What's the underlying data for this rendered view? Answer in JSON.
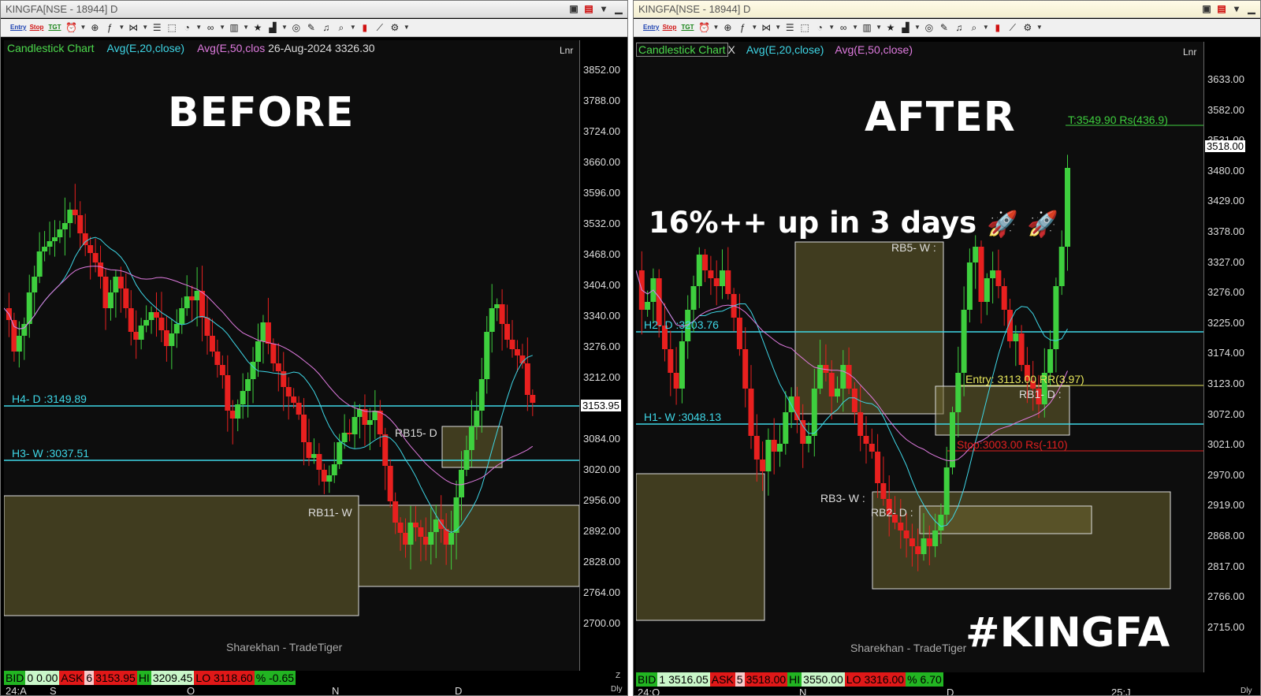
{
  "left": {
    "title": "KINGFA[NSE - 18944] D",
    "legend": {
      "type": "Candlestick Chart",
      "ema20": "Avg(E,20,close)",
      "ema50": "Avg(E,50,clos",
      "date": "26-Aug-2024",
      "price": "3326.30"
    },
    "scale_mode": "Lnr",
    "banner": "BEFORE",
    "price_axis": [
      "3852.00",
      "3788.00",
      "3724.00",
      "3660.00",
      "3596.00",
      "3532.00",
      "3468.00",
      "3404.00",
      "3340.00",
      "3276.00",
      "3212.00",
      "3148.00",
      "3084.00",
      "3020.00",
      "2956.00",
      "2892.00",
      "2828.00",
      "2764.00",
      "2700.00"
    ],
    "current_price": "3153.95",
    "levels": [
      {
        "label": "H4- D :3149.89",
        "color": "#3ed6e6"
      },
      {
        "label": "H3- W :3037.51",
        "color": "#3ed6e6"
      }
    ],
    "zones": [
      "RB15- D",
      "RB11- W"
    ],
    "status": {
      "bid_label": "BID",
      "bid_qty": "0",
      "bid": "0.00",
      "ask_label": "ASK",
      "ask_qty": "6",
      "ask": "3153.95",
      "hi_label": "HI",
      "hi": "3209.45",
      "lo_label": "LO",
      "lo": "3118.60",
      "pct_label": "%",
      "pct": "-0.65"
    },
    "time_labels": [
      "24:A",
      "S",
      "O",
      "N",
      "D"
    ],
    "watermark": "Sharekhan - TradeTiger",
    "corner_z": "Z",
    "corner_dly": "Dly"
  },
  "right": {
    "title": "KINGFA[NSE - 18944] D",
    "legend": {
      "type": "Candlestick Chart",
      "close_x": "X",
      "ema20": "Avg(E,20,close)",
      "ema50": "Avg(E,50,close)"
    },
    "scale_mode": "Lnr",
    "banner": "AFTER",
    "headline": "16%++ up in 3 days",
    "hashtag": "#KINGFA",
    "price_axis": [
      "3633.00",
      "3582.00",
      "3531.00",
      "3480.00",
      "3429.00",
      "3378.00",
      "3327.00",
      "3276.00",
      "3225.00",
      "3174.00",
      "3123.00",
      "3072.00",
      "3021.00",
      "2970.00",
      "2919.00",
      "2868.00",
      "2817.00",
      "2766.00",
      "2715.00"
    ],
    "current_price": "3518.00",
    "levels": [
      {
        "label": "H2- D :3203.76",
        "color": "#3ed6e6"
      },
      {
        "label": "H1- W :3048.13",
        "color": "#3ed6e6"
      }
    ],
    "target": "T:3549.90 Rs(436.9)",
    "entry": "Entry: 3113.00 RR(3.97)",
    "stop": "Stop:3003.00 Rs(-110)",
    "zones": [
      "RB5- W :",
      "RB1- D :",
      "RB3- W :",
      "RB2- D :"
    ],
    "status": {
      "bid_label": "BID",
      "bid_qty": "1",
      "bid": "3516.05",
      "ask_label": "ASK",
      "ask_qty": "5",
      "ask": "3518.00",
      "hi_label": "HI",
      "hi": "3550.00",
      "lo_label": "LO",
      "lo": "3316.00",
      "pct_label": "%",
      "pct": "6.70"
    },
    "time_labels": [
      "24:O",
      "N",
      "D",
      "25:J"
    ],
    "watermark": "Sharekhan - TradeTiger",
    "corner_dly": "Dly"
  },
  "colors": {
    "up": "#3ecf3e",
    "down": "#e8201f",
    "cyan": "#3ed6e6",
    "zone_fill": "#6b6530",
    "yellow": "#e6e65a",
    "red_line": "#e02020",
    "green_line": "#3ecf3e"
  },
  "toolbar_icons": [
    "entry-icon",
    "stop-icon",
    "target-icon",
    "alarm-icon",
    "crosshair-icon",
    "indicator-icon",
    "fib-icon",
    "lines-icon",
    "box-icon",
    "zoom-icon",
    "link-icon",
    "book-icon",
    "star-icon",
    "bars-icon",
    "speed-icon",
    "pen-icon",
    "bell-icon",
    "search-icon",
    "trash-icon",
    "chart-line-icon",
    "gear-icon"
  ],
  "toolbar_text": {
    "entry": "Entry",
    "stop": "Stop",
    "tgt": "TGT"
  }
}
